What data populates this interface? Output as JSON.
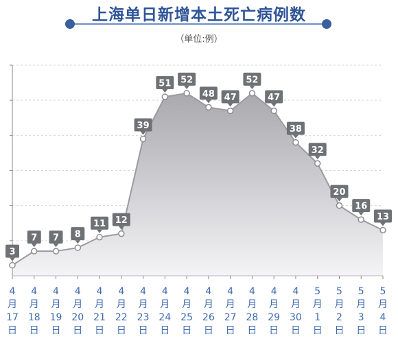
{
  "title": "上海单日新增本土死亡病例数",
  "unit": "（单位:例）",
  "colors": {
    "title": "#2f5597",
    "rule": "#6c8ec9",
    "rule_dot": "#3a5e9e",
    "axis_label": "#3c6ab0",
    "area_top": "#a9a9ae",
    "area_bottom": "#f4f4f6",
    "line": "#9a9aa0",
    "label_box": "#6f7275"
  },
  "chart_data": {
    "type": "area",
    "title": "上海单日新增本土死亡病例数",
    "subtitle": "（单位:例）",
    "xlabel": "",
    "ylabel": "",
    "ylim": [
      0,
      60
    ],
    "grid": true,
    "x": [
      {
        "month": "4",
        "unit_month": "月",
        "day": "17",
        "unit_day": "日"
      },
      {
        "month": "4",
        "unit_month": "月",
        "day": "18",
        "unit_day": "日"
      },
      {
        "month": "4",
        "unit_month": "月",
        "day": "19",
        "unit_day": "日"
      },
      {
        "month": "4",
        "unit_month": "月",
        "day": "20",
        "unit_day": "日"
      },
      {
        "month": "4",
        "unit_month": "月",
        "day": "21",
        "unit_day": "日"
      },
      {
        "month": "4",
        "unit_month": "月",
        "day": "22",
        "unit_day": "日"
      },
      {
        "month": "4",
        "unit_month": "月",
        "day": "23",
        "unit_day": "日"
      },
      {
        "month": "4",
        "unit_month": "月",
        "day": "24",
        "unit_day": "日"
      },
      {
        "month": "4",
        "unit_month": "月",
        "day": "25",
        "unit_day": "日"
      },
      {
        "month": "4",
        "unit_month": "月",
        "day": "26",
        "unit_day": "日"
      },
      {
        "month": "4",
        "unit_month": "月",
        "day": "27",
        "unit_day": "日"
      },
      {
        "month": "4",
        "unit_month": "月",
        "day": "28",
        "unit_day": "日"
      },
      {
        "month": "4",
        "unit_month": "月",
        "day": "29",
        "unit_day": "日"
      },
      {
        "month": "4",
        "unit_month": "月",
        "day": "30",
        "unit_day": "日"
      },
      {
        "month": "5",
        "unit_month": "月",
        "day": "1",
        "unit_day": "日"
      },
      {
        "month": "5",
        "unit_month": "月",
        "day": "2",
        "unit_day": "日"
      },
      {
        "month": "5",
        "unit_month": "月",
        "day": "3",
        "unit_day": "日"
      },
      {
        "month": "5",
        "unit_month": "月",
        "day": "4",
        "unit_day": "日"
      }
    ],
    "values": [
      3,
      7,
      7,
      8,
      11,
      12,
      39,
      51,
      52,
      48,
      47,
      52,
      47,
      38,
      32,
      20,
      16,
      13
    ]
  }
}
